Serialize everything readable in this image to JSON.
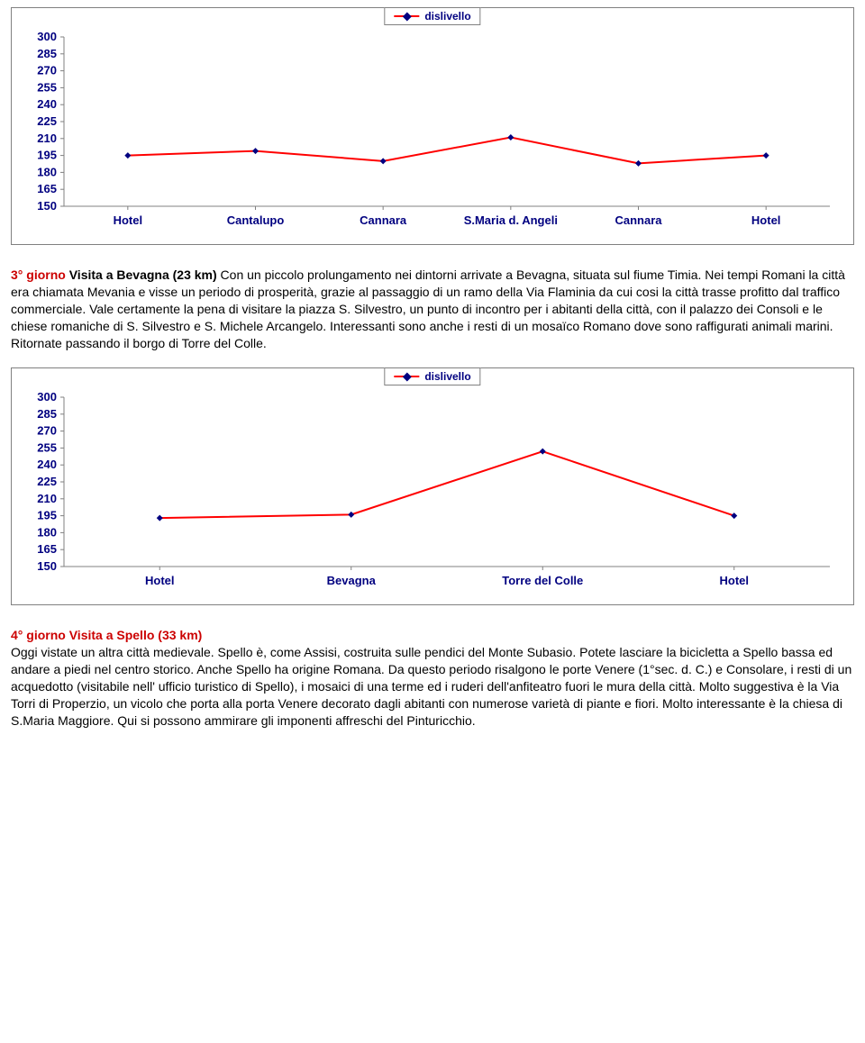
{
  "chart1": {
    "type": "line",
    "legend_label": "dislivello",
    "line_color": "#ff0000",
    "marker_color": "#000080",
    "marker_shape": "diamond",
    "axis_label_color": "#000080",
    "axis_label_fontsize": 13,
    "axis_font_weight": "bold",
    "border_color": "#808080",
    "background_color": "#ffffff",
    "ylim": [
      150,
      300
    ],
    "ytick_step": 15,
    "yticks": [
      "300",
      "285",
      "270",
      "255",
      "240",
      "225",
      "210",
      "195",
      "180",
      "165",
      "150"
    ],
    "categories": [
      "Hotel",
      "Cantalupo",
      "Cannara",
      "S.Maria d. Angeli",
      "Cannara",
      "Hotel"
    ],
    "values": [
      195,
      199,
      190,
      211,
      188,
      195
    ],
    "line_width": 2,
    "marker_size": 7
  },
  "para1": {
    "title_prefix": "3° giorno ",
    "title_main": "Visita a Bevagna (23 km) ",
    "body": "Con un piccolo prolungamento nei dintorni arrivate a Bevagna, situata sul fiume Timia. Nei tempi Romani la città era chiamata Mevania e visse un periodo di prosperità, grazie al  passaggio di un ramo della Via Flaminia da cui cosi la città trasse profitto dal traffico commerciale. Vale certamente la pena di visitare la piazza S. Silvestro, un punto di incontro per i abitanti della città, con il palazzo dei Consoli e le chiese romaniche di S. Silvestro e S. Michele Arcangelo. Interessanti sono anche i resti di un mosaïco Romano dove sono raffigurati animali marini. Ritornate passando il borgo di Torre del Colle."
  },
  "chart2": {
    "type": "line",
    "legend_label": "dislivello",
    "line_color": "#ff0000",
    "marker_color": "#000080",
    "marker_shape": "diamond",
    "axis_label_color": "#000080",
    "axis_label_fontsize": 13,
    "axis_font_weight": "bold",
    "border_color": "#808080",
    "background_color": "#ffffff",
    "ylim": [
      150,
      300
    ],
    "ytick_step": 15,
    "yticks": [
      "300",
      "285",
      "270",
      "255",
      "240",
      "225",
      "210",
      "195",
      "180",
      "165",
      "150"
    ],
    "categories": [
      "Hotel",
      "Bevagna",
      "Torre del Colle",
      "Hotel"
    ],
    "values": [
      193,
      196,
      252,
      195
    ],
    "line_width": 2,
    "marker_size": 7
  },
  "para2": {
    "title_prefix": "4° giorno ",
    "title_main": "Visita a Spello (33 km)",
    "body": "Oggi vistate un altra città medievale. Spello è, come Assisi, costruita sulle pendici del Monte Subasio. Potete lasciare la bicicletta a Spello bassa ed andare a piedi nel centro storico. Anche Spello ha origine Romana. Da questo periodo risalgono le porte Venere (1°sec. d. C.) e Consolare, i resti di un acquedotto (visitabile nell' ufficio turistico di Spello), i mosaici di una terme ed i ruderi dell'anfiteatro fuori le mura della città. Molto suggestiva è la Via Torri di Properzio, un vicolo che porta alla porta Venere decorato dagli abitanti con numerose varietà di piante e fiori. Molto interessante è la chiesa di S.Maria Maggiore. Qui si possono ammirare gli imponenti affreschi del Pinturicchio."
  }
}
